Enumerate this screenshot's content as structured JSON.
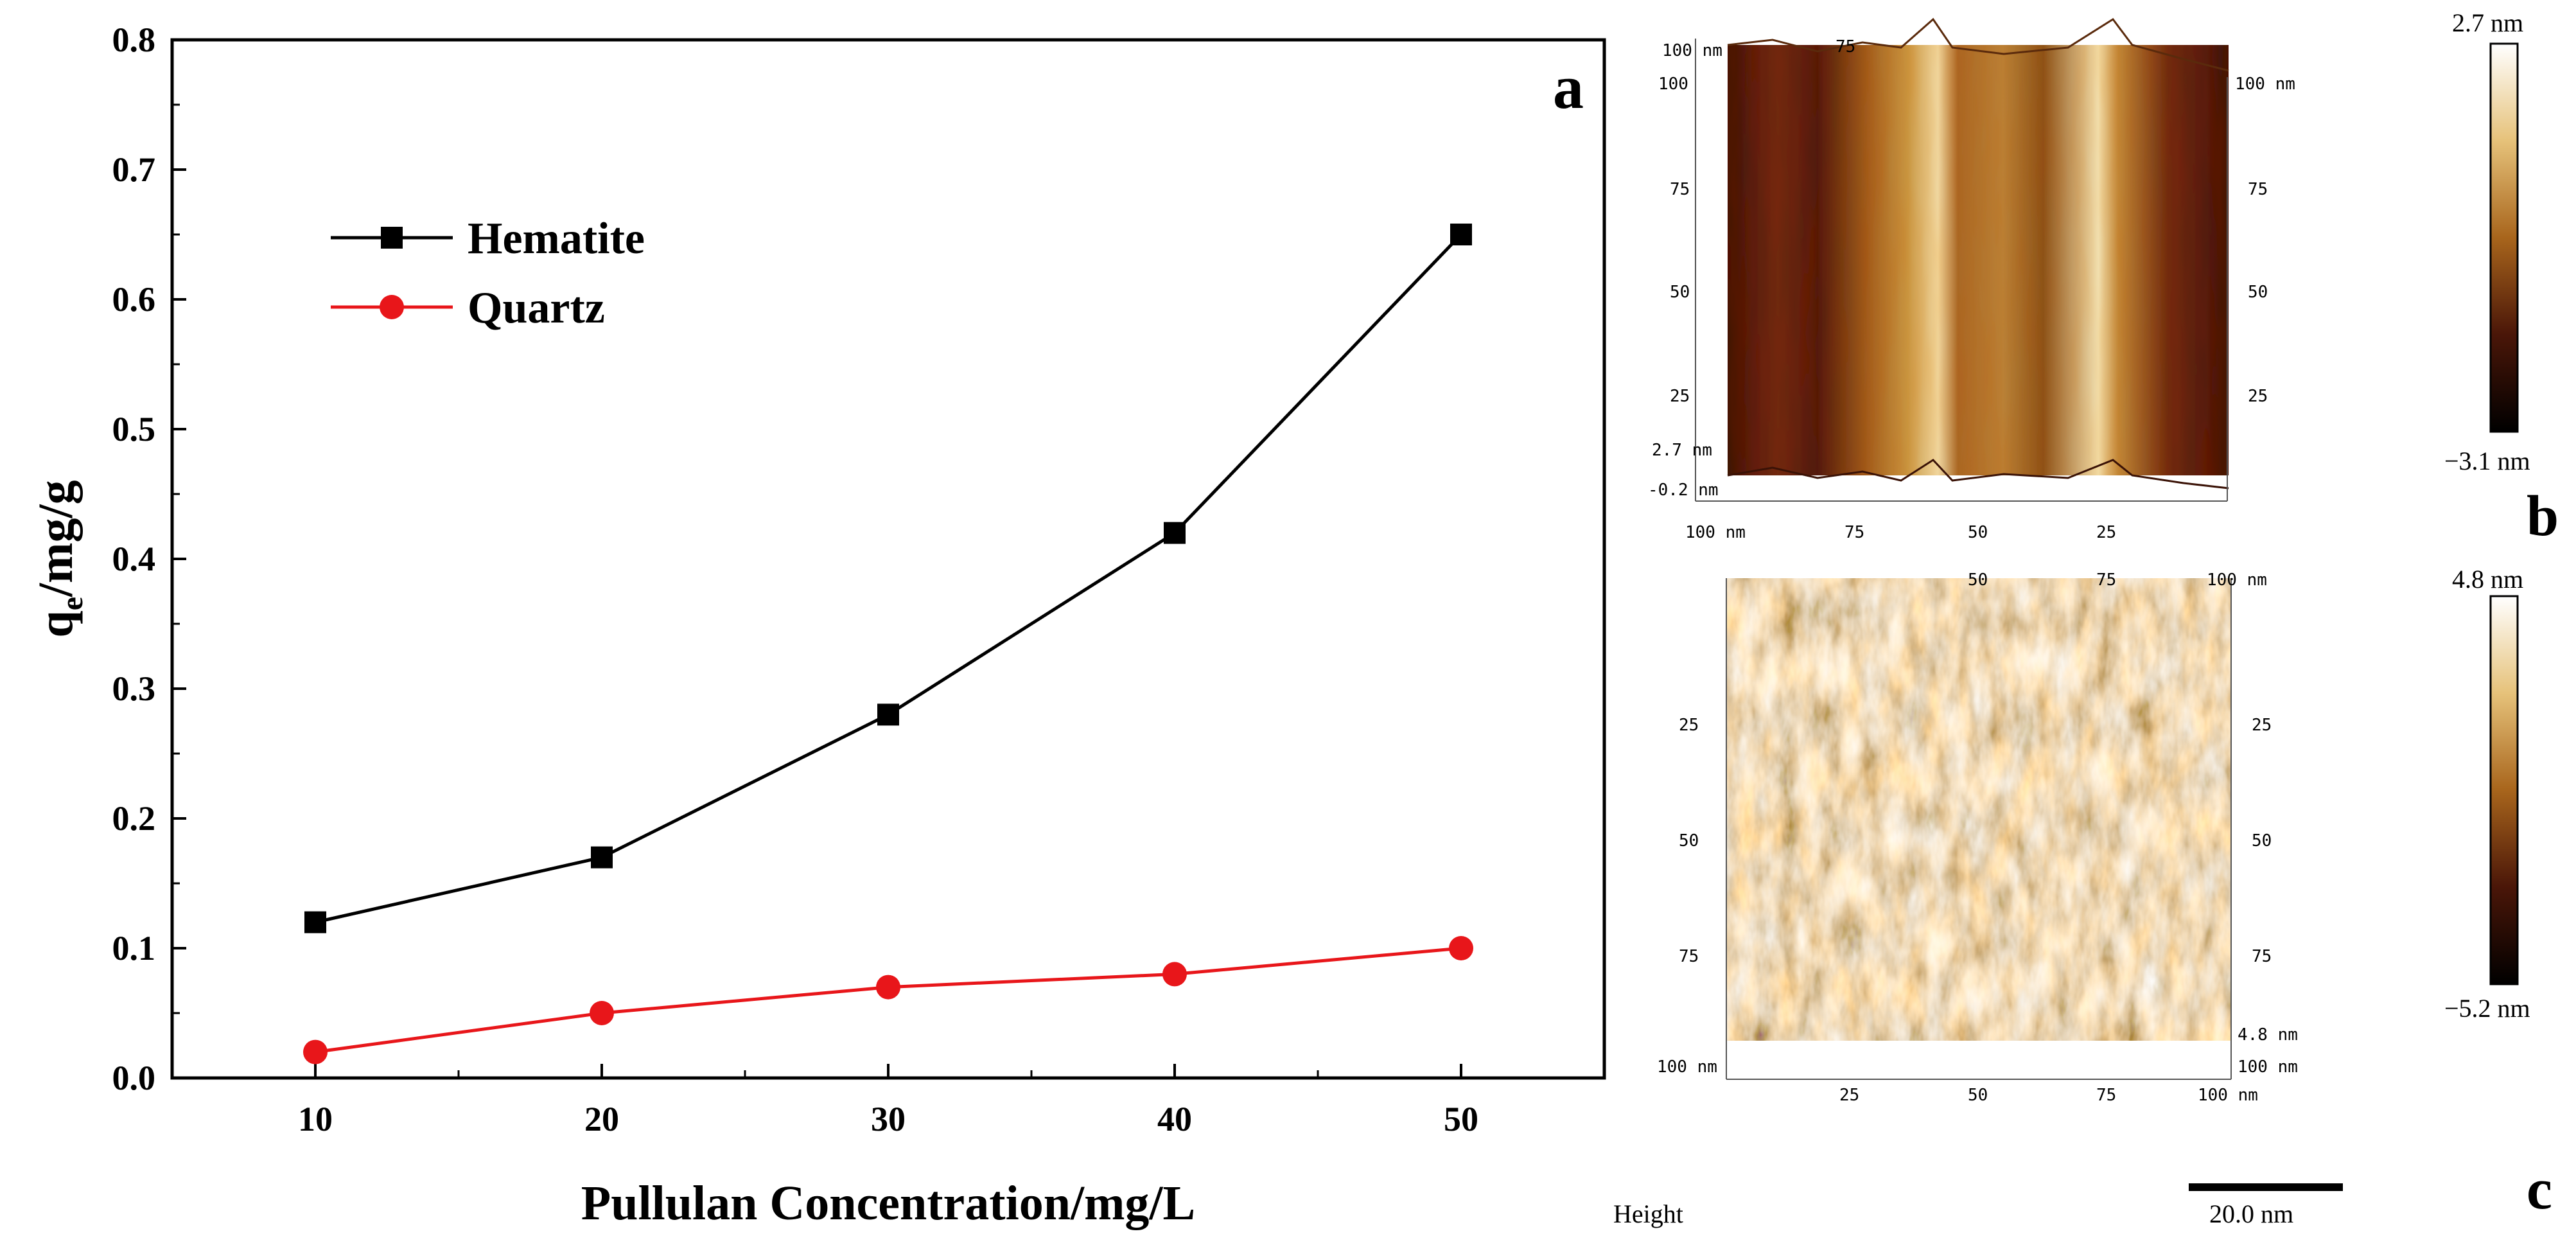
{
  "chart_data": {
    "type": "line",
    "panel_label": "a",
    "x": [
      10,
      20,
      30,
      40,
      50
    ],
    "xlabel": "Pullulan Concentration/mg/L",
    "ylabel_main": "q",
    "ylabel_sub": "e",
    "ylabel_rest": "/mg/g",
    "xlim": [
      5,
      55
    ],
    "ylim": [
      0.0,
      0.8
    ],
    "xticks": [
      "10",
      "20",
      "30",
      "40",
      "50"
    ],
    "yticks": [
      "0.0",
      "0.1",
      "0.2",
      "0.3",
      "0.4",
      "0.5",
      "0.6",
      "0.7",
      "0.8"
    ],
    "series": [
      {
        "name": "Hematite",
        "color": "#000000",
        "marker": "square",
        "values": [
          0.12,
          0.17,
          0.28,
          0.42,
          0.65
        ]
      },
      {
        "name": "Quartz",
        "color": "#e8161a",
        "marker": "circle",
        "values": [
          0.02,
          0.05,
          0.07,
          0.08,
          0.1
        ]
      }
    ],
    "legend_position": "top-left",
    "grid": false
  },
  "afm": {
    "panel_b": {
      "label": "b",
      "colorbar_max": "2.7 nm",
      "colorbar_min": "−3.1 nm",
      "axis_ticks_left": [
        "100 nm",
        "100",
        "75",
        "50",
        "25",
        "2.7 nm",
        "-0.2 nm"
      ],
      "axis_ticks_right": [
        "100 nm",
        "75",
        "50",
        "25"
      ],
      "axis_ticks_bottom": [
        "100 nm",
        "75",
        "50",
        "25"
      ],
      "axis_ticks_top": [
        "75"
      ]
    },
    "panel_c": {
      "label": "c",
      "colorbar_max": "4.8 nm",
      "colorbar_min": "−5.2 nm",
      "axis_ticks_left": [
        "25",
        "50",
        "75",
        "100 nm"
      ],
      "axis_ticks_right": [
        "25",
        "50",
        "75",
        "4.8 nm",
        "100 nm"
      ],
      "axis_ticks_bottom": [
        "25",
        "50",
        "75",
        "100 nm"
      ],
      "axis_ticks_top": [
        "50",
        "75",
        "100 nm"
      ]
    },
    "height_label": "Height",
    "scale_bar": "20.0 nm"
  },
  "colors": {
    "hematite": "#000000",
    "quartz": "#e8161a",
    "afm_dark": "#2a0c04",
    "afm_mid": "#8a4a14",
    "afm_light": "#f2e6c8"
  }
}
